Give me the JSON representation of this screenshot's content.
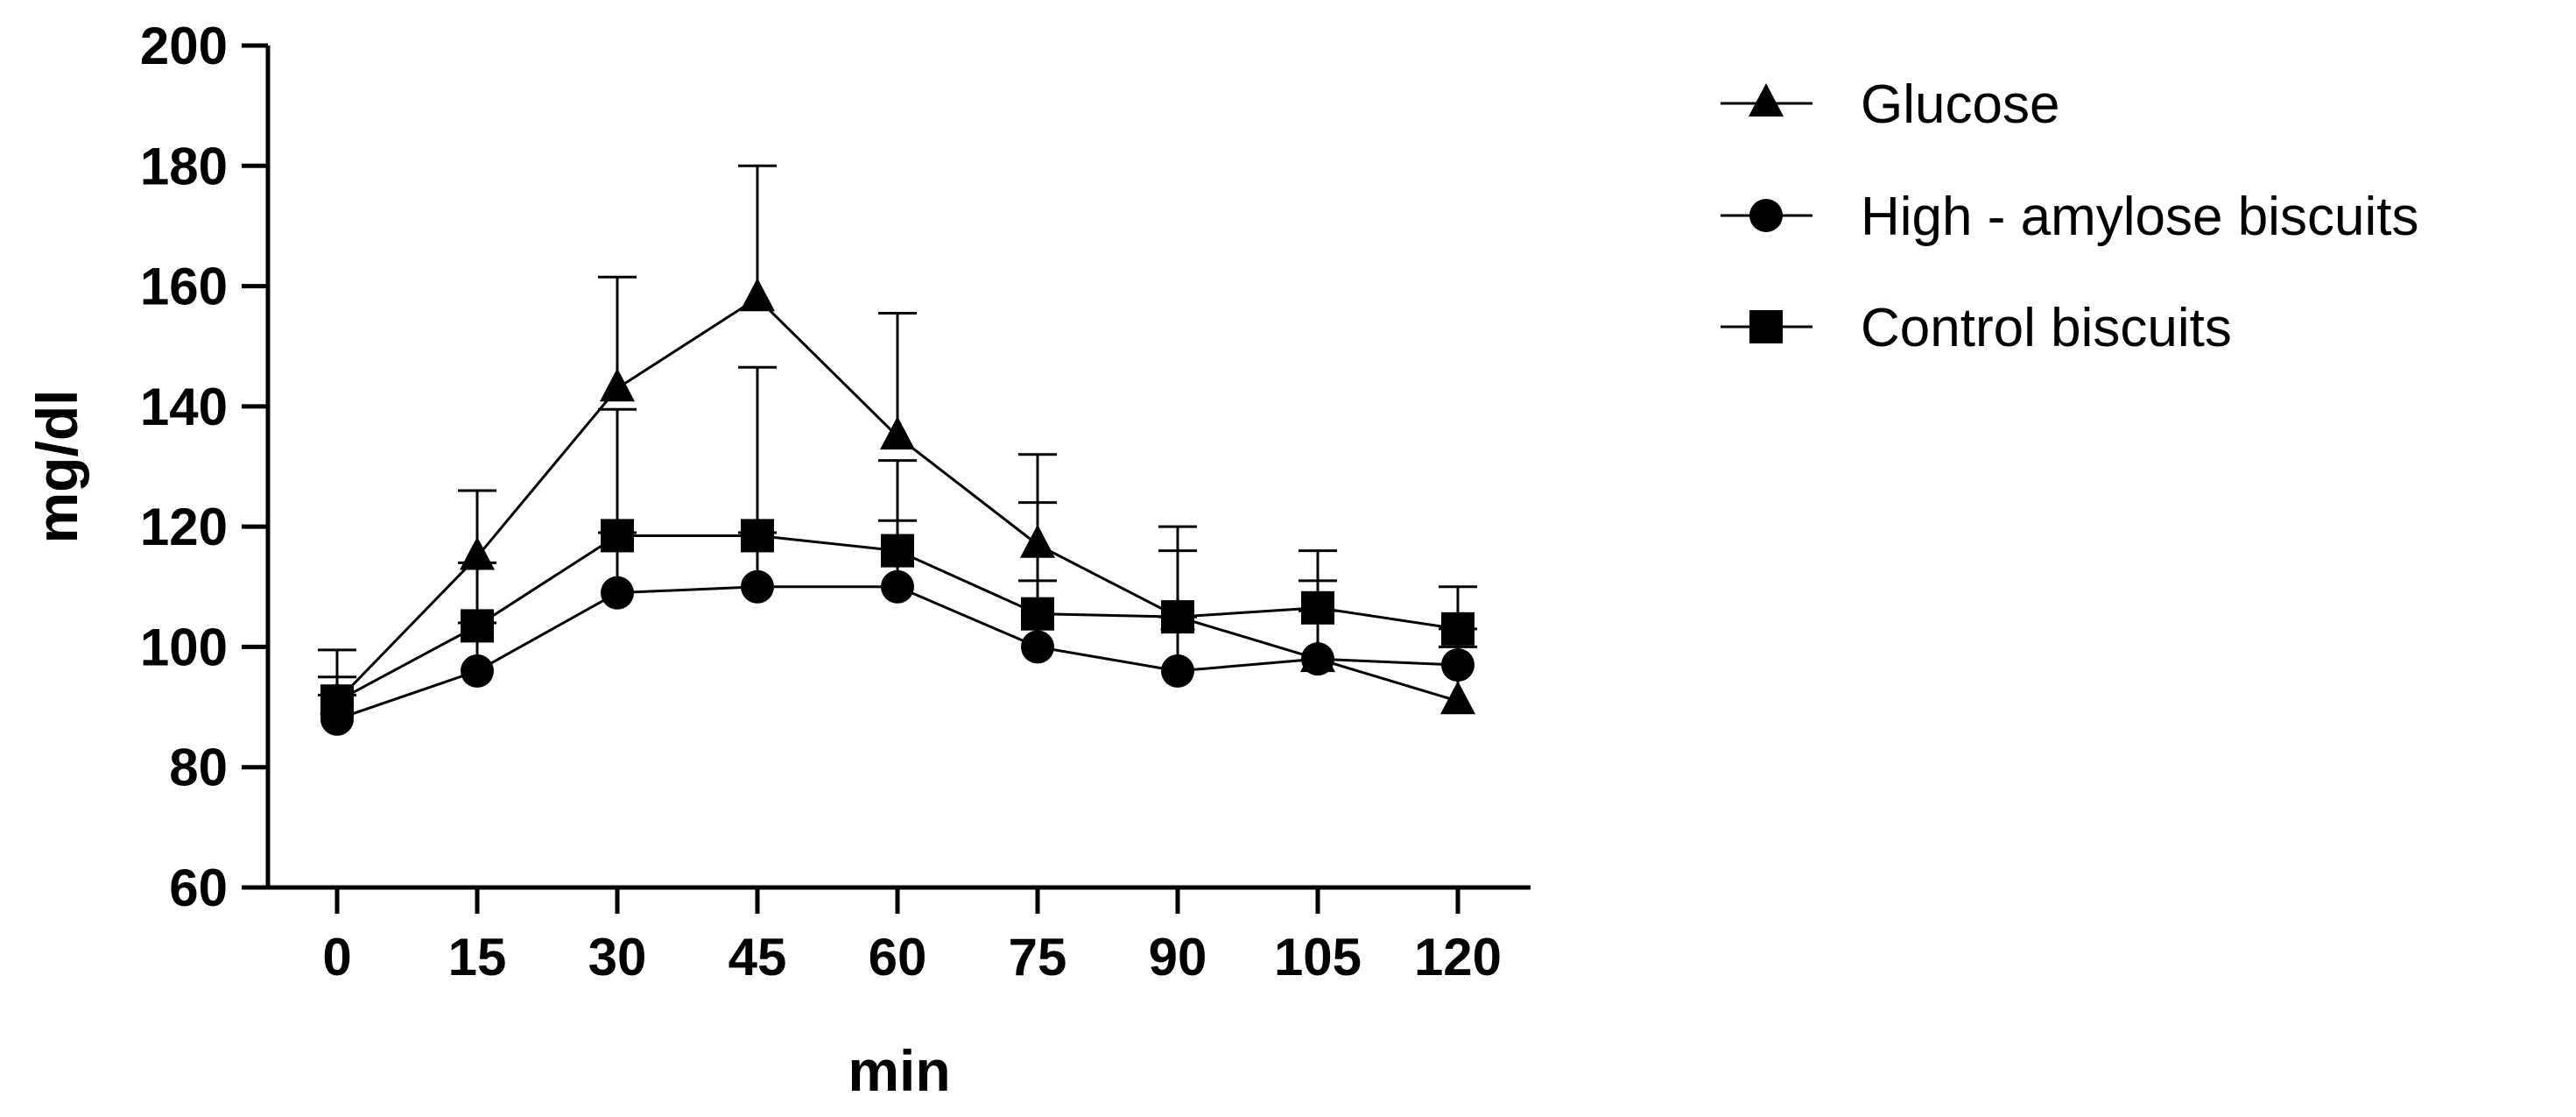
{
  "chart_data": {
    "type": "line",
    "title": "",
    "xlabel": "min",
    "ylabel": "mg/dl",
    "x": [
      0,
      15,
      30,
      45,
      60,
      75,
      90,
      105,
      120
    ],
    "xticks": [
      "0",
      "15",
      "30",
      "45",
      "60",
      "75",
      "90",
      "105",
      "120"
    ],
    "yticks": [
      "60",
      "80",
      "100",
      "120",
      "140",
      "160",
      "180",
      "200"
    ],
    "ylim": [
      60,
      200
    ],
    "xlim": [
      -7.5,
      127.5
    ],
    "grid": false,
    "legend_position": "top-right",
    "series": [
      {
        "name": "Glucose",
        "marker": "triangle",
        "values": [
          91,
          115,
          143,
          158,
          135,
          117,
          105,
          98,
          91
        ],
        "error_upper": [
          95,
          126,
          161.5,
          180,
          155.5,
          132,
          120,
          116,
          100
        ]
      },
      {
        "name": "High - amylose biscuits",
        "marker": "circle",
        "values": [
          88,
          96,
          109,
          110,
          110,
          100,
          96,
          98,
          97
        ],
        "error_upper": [
          92,
          104,
          119,
          119,
          121,
          111,
          105,
          106,
          103
        ]
      },
      {
        "name": "Control biscuits",
        "marker": "square",
        "values": [
          91,
          103.5,
          118.5,
          118.5,
          116,
          105.5,
          105,
          106.5,
          103
        ],
        "error_upper": [
          99.5,
          114,
          139.5,
          146.5,
          131,
          124,
          116,
          111,
          110
        ]
      }
    ],
    "colors": {
      "line": "#000000",
      "marker": "#000000"
    }
  }
}
